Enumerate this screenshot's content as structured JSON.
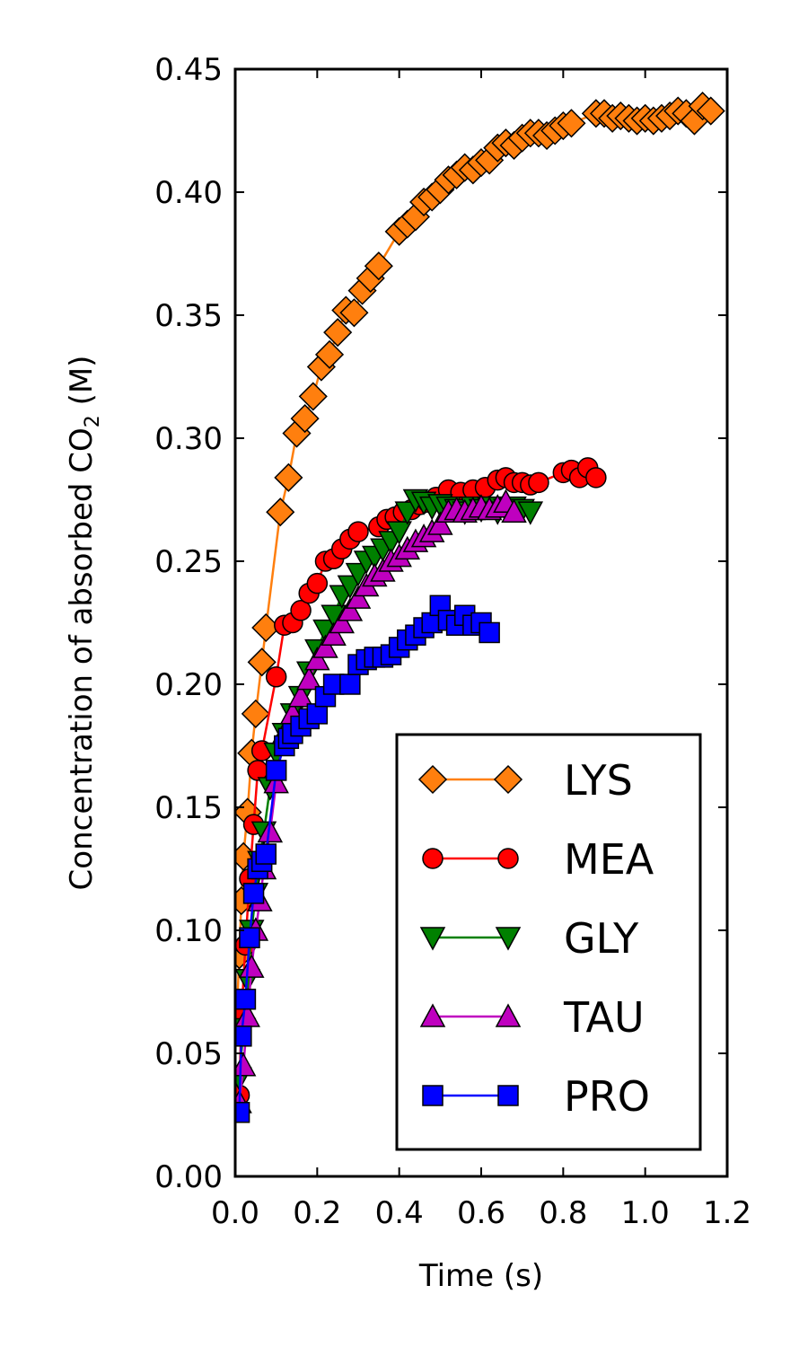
{
  "chart_data": {
    "type": "line",
    "xlabel": "Time (s)",
    "ylabel": {
      "prefix": "Concentration of absorbed CO",
      "subscript": "2",
      "suffix": " (M)"
    },
    "xlim": [
      0.0,
      1.2
    ],
    "ylim": [
      0.0,
      0.45
    ],
    "xticks": [
      "0.0",
      "0.2",
      "0.4",
      "0.6",
      "0.8",
      "1.0",
      "1.2"
    ],
    "yticks": [
      "0.00",
      "0.05",
      "0.10",
      "0.15",
      "0.20",
      "0.25",
      "0.30",
      "0.35",
      "0.40",
      "0.45"
    ],
    "legend_position": "lower-right",
    "series": [
      {
        "name": "LYS",
        "marker": "diamond",
        "color": "#ff7f0e",
        "x": [
          0.005,
          0.01,
          0.015,
          0.02,
          0.03,
          0.04,
          0.05,
          0.065,
          0.075,
          0.11,
          0.13,
          0.15,
          0.17,
          0.19,
          0.21,
          0.23,
          0.25,
          0.27,
          0.29,
          0.31,
          0.33,
          0.35,
          0.4,
          0.42,
          0.44,
          0.46,
          0.48,
          0.5,
          0.52,
          0.54,
          0.56,
          0.58,
          0.6,
          0.62,
          0.64,
          0.66,
          0.68,
          0.7,
          0.72,
          0.74,
          0.76,
          0.78,
          0.8,
          0.82,
          0.88,
          0.9,
          0.92,
          0.94,
          0.96,
          0.98,
          1.0,
          1.02,
          1.04,
          1.06,
          1.08,
          1.1,
          1.12,
          1.14,
          1.16
        ],
        "y": [
          0.07,
          0.09,
          0.112,
          0.13,
          0.148,
          0.172,
          0.188,
          0.209,
          0.223,
          0.27,
          0.284,
          0.302,
          0.308,
          0.317,
          0.329,
          0.334,
          0.343,
          0.352,
          0.351,
          0.36,
          0.365,
          0.37,
          0.384,
          0.387,
          0.39,
          0.396,
          0.398,
          0.401,
          0.405,
          0.407,
          0.41,
          0.409,
          0.412,
          0.413,
          0.418,
          0.42,
          0.419,
          0.422,
          0.424,
          0.424,
          0.423,
          0.425,
          0.427,
          0.428,
          0.432,
          0.432,
          0.43,
          0.431,
          0.43,
          0.429,
          0.43,
          0.429,
          0.43,
          0.431,
          0.433,
          0.432,
          0.429,
          0.435,
          0.433
        ]
      },
      {
        "name": "MEA",
        "marker": "circle",
        "color": "#ff0000",
        "x": [
          0.01,
          0.015,
          0.025,
          0.035,
          0.045,
          0.055,
          0.065,
          0.1,
          0.12,
          0.14,
          0.16,
          0.18,
          0.2,
          0.22,
          0.24,
          0.26,
          0.28,
          0.3,
          0.35,
          0.37,
          0.39,
          0.41,
          0.43,
          0.45,
          0.47,
          0.49,
          0.52,
          0.55,
          0.58,
          0.61,
          0.64,
          0.66,
          0.68,
          0.7,
          0.72,
          0.74,
          0.8,
          0.82,
          0.84,
          0.86,
          0.88
        ],
        "y": [
          0.033,
          0.065,
          0.094,
          0.121,
          0.143,
          0.165,
          0.173,
          0.203,
          0.224,
          0.225,
          0.23,
          0.237,
          0.241,
          0.25,
          0.251,
          0.255,
          0.259,
          0.262,
          0.264,
          0.267,
          0.268,
          0.27,
          0.271,
          0.273,
          0.274,
          0.276,
          0.279,
          0.278,
          0.279,
          0.28,
          0.283,
          0.284,
          0.282,
          0.282,
          0.281,
          0.282,
          0.286,
          0.287,
          0.284,
          0.288,
          0.284
        ]
      },
      {
        "name": "GLY",
        "marker": "triangle-down",
        "color": "#008000",
        "x": [
          0.01,
          0.02,
          0.03,
          0.04,
          0.05,
          0.06,
          0.07,
          0.085,
          0.1,
          0.12,
          0.14,
          0.16,
          0.18,
          0.2,
          0.22,
          0.24,
          0.26,
          0.28,
          0.3,
          0.32,
          0.34,
          0.36,
          0.38,
          0.4,
          0.42,
          0.44,
          0.46,
          0.48,
          0.5,
          0.52,
          0.54,
          0.56,
          0.58,
          0.6,
          0.62,
          0.64,
          0.66,
          0.68,
          0.7,
          0.72
        ],
        "y": [
          0.04,
          0.06,
          0.08,
          0.1,
          0.115,
          0.128,
          0.14,
          0.158,
          0.172,
          0.18,
          0.188,
          0.195,
          0.205,
          0.214,
          0.222,
          0.228,
          0.236,
          0.24,
          0.245,
          0.25,
          0.252,
          0.255,
          0.258,
          0.262,
          0.27,
          0.275,
          0.274,
          0.272,
          0.273,
          0.272,
          0.271,
          0.27,
          0.272,
          0.271,
          0.272,
          0.27,
          0.271,
          0.272,
          0.271,
          0.27
        ]
      },
      {
        "name": "TAU",
        "marker": "triangle-up",
        "color": "#bf00bf",
        "x": [
          0.01,
          0.02,
          0.03,
          0.04,
          0.05,
          0.06,
          0.07,
          0.085,
          0.1,
          0.12,
          0.14,
          0.16,
          0.18,
          0.2,
          0.22,
          0.24,
          0.26,
          0.28,
          0.3,
          0.32,
          0.34,
          0.36,
          0.38,
          0.4,
          0.42,
          0.44,
          0.46,
          0.48,
          0.5,
          0.52,
          0.54,
          0.56,
          0.58,
          0.6,
          0.62,
          0.64,
          0.66,
          0.68
        ],
        "y": [
          0.03,
          0.045,
          0.065,
          0.085,
          0.1,
          0.112,
          0.125,
          0.14,
          0.16,
          0.18,
          0.188,
          0.195,
          0.202,
          0.21,
          0.215,
          0.22,
          0.225,
          0.23,
          0.235,
          0.24,
          0.244,
          0.246,
          0.25,
          0.252,
          0.255,
          0.258,
          0.26,
          0.262,
          0.265,
          0.27,
          0.271,
          0.27,
          0.271,
          0.272,
          0.271,
          0.272,
          0.274,
          0.27
        ]
      },
      {
        "name": "PRO",
        "marker": "square",
        "color": "#0000ff",
        "x": [
          0.01,
          0.015,
          0.025,
          0.035,
          0.045,
          0.055,
          0.065,
          0.075,
          0.1,
          0.12,
          0.13,
          0.14,
          0.16,
          0.18,
          0.2,
          0.22,
          0.24,
          0.28,
          0.3,
          0.32,
          0.34,
          0.36,
          0.38,
          0.4,
          0.42,
          0.44,
          0.46,
          0.48,
          0.5,
          0.52,
          0.54,
          0.56,
          0.58,
          0.6,
          0.62
        ],
        "y": [
          0.026,
          0.057,
          0.072,
          0.097,
          0.115,
          0.125,
          0.128,
          0.131,
          0.165,
          0.175,
          0.178,
          0.18,
          0.183,
          0.186,
          0.188,
          0.195,
          0.2,
          0.2,
          0.208,
          0.21,
          0.211,
          0.211,
          0.212,
          0.215,
          0.218,
          0.22,
          0.223,
          0.225,
          0.232,
          0.226,
          0.224,
          0.228,
          0.224,
          0.225,
          0.221
        ]
      }
    ]
  }
}
